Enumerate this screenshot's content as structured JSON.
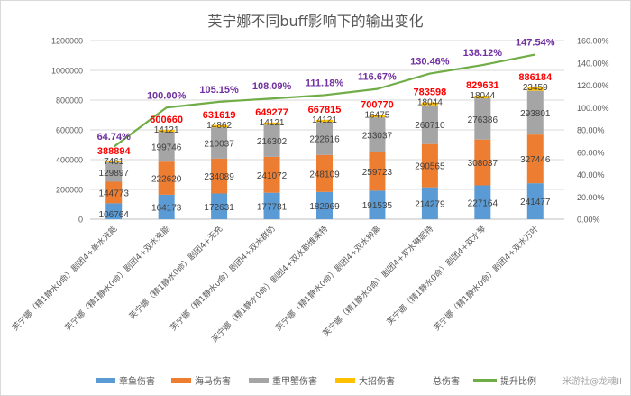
{
  "chart_data": {
    "type": "bar",
    "subtype": "stacked-bar-with-line",
    "title": "芙宁娜不同buff影响下的输出变化",
    "categories": [
      "芙宁娜（精1静水0命）剧团4+单水充能",
      "芙宁娜（精1静水0命）剧团4+双水充能",
      "芙宁娜（精1静水0命）剧团4+无充",
      "芙宁娜（精1静水0命）剧团4+双水群奶",
      "芙宁娜（精1静水0命）剧团4+双水那维莱特",
      "芙宁娜（精1静水0命）剧团4+双水钟离",
      "芙宁娜（精1静水0命）剧团4+双水琳妮特",
      "芙宁娜（精1静水0命）剧团4+双水琴",
      "芙宁娜（精1静水0命）剧团4+双水万叶"
    ],
    "series": [
      {
        "name": "章鱼伤害",
        "color": "#5b9bd5",
        "values": [
          106764,
          164173,
          172631,
          177781,
          182969,
          191535,
          214279,
          227164,
          241477
        ]
      },
      {
        "name": "海马伤害",
        "color": "#ed7d31",
        "values": [
          144773,
          222620,
          234089,
          241072,
          248109,
          259723,
          290565,
          308037,
          327446
        ]
      },
      {
        "name": "重甲蟹伤害",
        "color": "#a5a5a5",
        "values": [
          129897,
          199746,
          210037,
          216302,
          222616,
          233037,
          260710,
          276386,
          293801
        ]
      },
      {
        "name": "大招伤害",
        "color": "#ffc000",
        "values": [
          7461,
          14121,
          14862,
          14121,
          14121,
          16475,
          18044,
          18044,
          23459
        ]
      }
    ],
    "total": {
      "name": "总伤害",
      "color": "#ff0000",
      "values": [
        388894,
        600660,
        631619,
        649277,
        667815,
        700770,
        783598,
        829631,
        886184
      ]
    },
    "ratio": {
      "name": "提升比例",
      "color": "#70ad47",
      "label_color": "#7030a0",
      "values": [
        64.74,
        100.0,
        105.15,
        108.09,
        111.18,
        116.67,
        130.46,
        138.12,
        147.54
      ],
      "labels": [
        "64.74%",
        "100.00%",
        "105.15%",
        "108.09%",
        "111.18%",
        "116.67%",
        "130.46%",
        "138.12%",
        "147.54%"
      ]
    },
    "ylim": [
      0,
      1200000
    ],
    "y2lim": [
      0,
      160
    ],
    "yticks": [
      "0",
      "200000",
      "400000",
      "600000",
      "800000",
      "1000000",
      "1200000"
    ],
    "y2ticks": [
      "0.00%",
      "20.00%",
      "40.00%",
      "60.00%",
      "80.00%",
      "100.00%",
      "120.00%",
      "140.00%",
      "160.00%"
    ],
    "grid": true,
    "legend": "bottom"
  },
  "watermark": "米游社@龙魂II"
}
